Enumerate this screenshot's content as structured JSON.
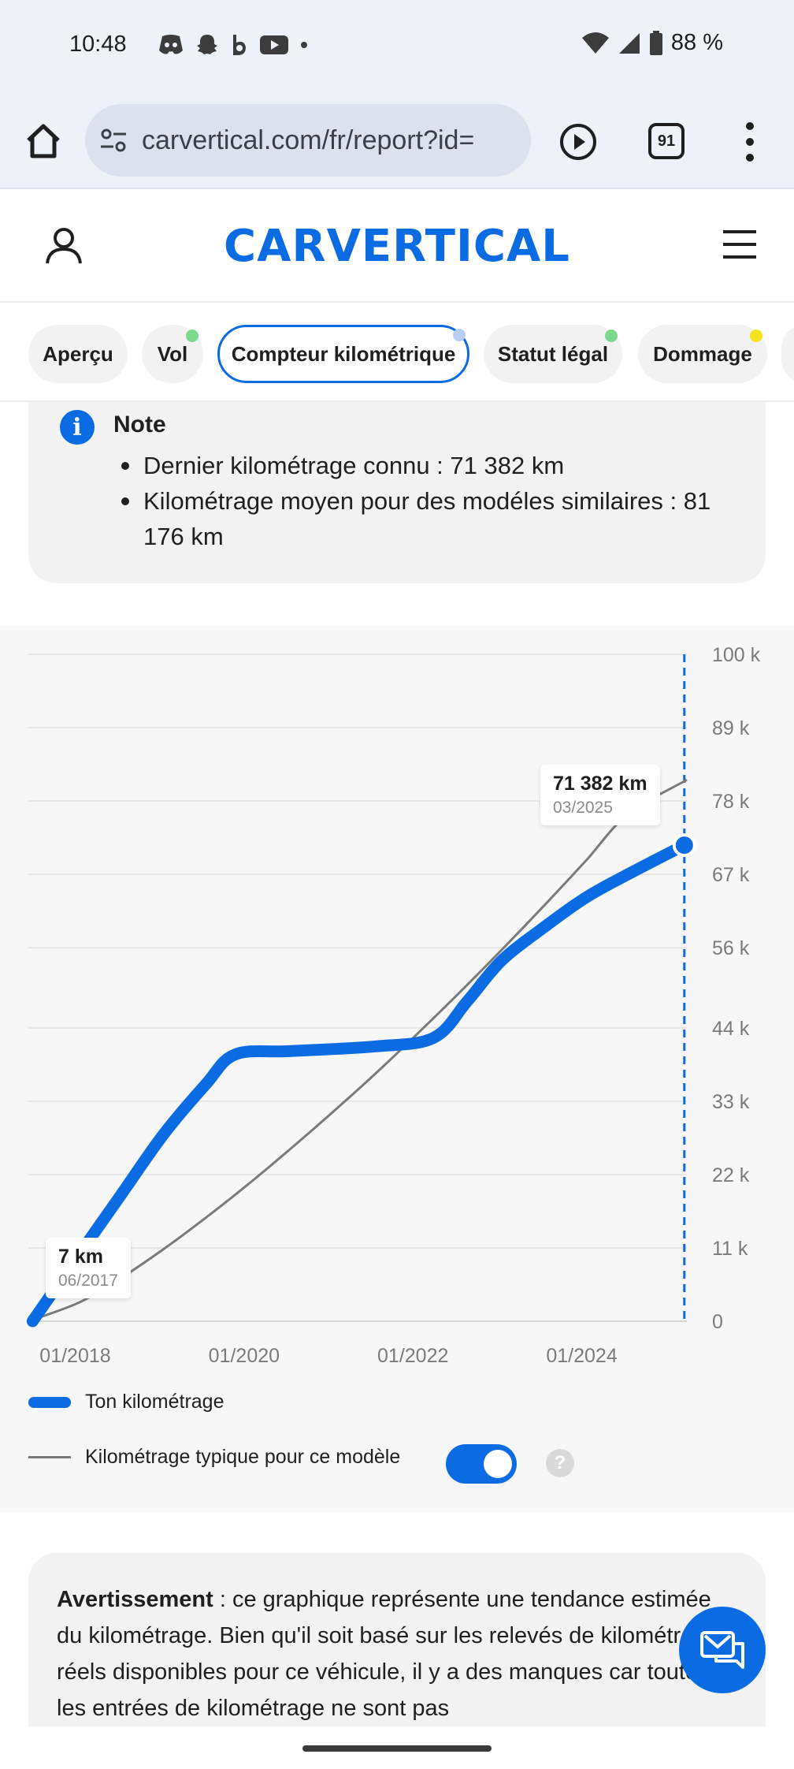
{
  "status_bar": {
    "time": "10:48",
    "battery": "88 %",
    "icons": [
      "discord-icon",
      "snapchat-icon",
      "bereal-icon",
      "youtube-icon",
      "dot-icon"
    ]
  },
  "browser": {
    "url": "carvertical.com/fr/report?id=",
    "tab_count": "91"
  },
  "header": {
    "logo": "CARVERTICAL"
  },
  "tabs": [
    {
      "label": "Aperçu",
      "dot": ""
    },
    {
      "label": "Vol",
      "dot": "#7bd88f"
    },
    {
      "label": "Compteur kilométrique",
      "dot": "#b7cdf2",
      "active": true
    },
    {
      "label": "Statut légal",
      "dot": "#7bd88f"
    },
    {
      "label": "Dommage",
      "dot": "#f4e21c"
    }
  ],
  "note": {
    "title": "Note",
    "items": [
      "Dernier kilométrage connu : 71 382 km",
      "Kilométrage moyen pour des modéles similaires : 81 176 km"
    ]
  },
  "chart_data": {
    "type": "line",
    "title": "",
    "xlabel": "",
    "ylabel": "",
    "x_tick_labels": [
      "01/2018",
      "01/2020",
      "01/2022",
      "01/2024"
    ],
    "y_tick_labels": [
      "0",
      "11 k",
      "22 k",
      "33 k",
      "44 k",
      "56 k",
      "67 k",
      "78 k",
      "89 k",
      "100 k"
    ],
    "y_ticks": [
      0,
      11000,
      22000,
      33000,
      44000,
      56000,
      67000,
      78000,
      89000,
      100000
    ],
    "ylim": [
      0,
      100000
    ],
    "x_range": [
      2017.4,
      2025.2
    ],
    "series": [
      {
        "name": "Ton kilométrage",
        "color": "#0b6be3",
        "x": [
          2017.45,
          2018.0,
          2018.5,
          2019.0,
          2019.5,
          2019.85,
          2020.5,
          2021.5,
          2022.2,
          2022.6,
          2023.0,
          2023.5,
          2024.0,
          2024.5,
          2025.17
        ],
        "y": [
          7,
          10000,
          19000,
          28000,
          35500,
          40000,
          40500,
          41200,
          42500,
          48000,
          54000,
          59000,
          63500,
          67000,
          71382
        ]
      },
      {
        "name": "Kilométrage typique pour ce modèle",
        "color": "#7a7a7a",
        "x": [
          2017.4,
          2018.0,
          2018.5,
          2019.0,
          2019.5,
          2020.0,
          2020.5,
          2021.0,
          2021.5,
          2022.0,
          2022.5,
          2023.0,
          2023.5,
          2024.0,
          2024.5,
          2025.2
        ],
        "y": [
          0,
          2800,
          6500,
          10800,
          15500,
          20500,
          25800,
          31300,
          37000,
          43000,
          49200,
          55600,
          62200,
          69000,
          76000,
          81176
        ]
      }
    ],
    "annotations": [
      {
        "value_label": "71 382 km",
        "date_label": "03/2025"
      },
      {
        "value_label": "7 km",
        "date_label": "06/2017"
      }
    ]
  },
  "legend": {
    "own": "Ton kilométrage",
    "typical": "Kilométrage typique pour ce modèle"
  },
  "warning": {
    "bold": "Avertissement",
    "text": " : ce graphique représente une tendance estimée du kilométrage. Bien qu'il soit basé sur les relevés de kilométrage réels disponibles pour ce véhicule, il y a des manques car toutes les entrées de kilométrage ne sont pas"
  }
}
